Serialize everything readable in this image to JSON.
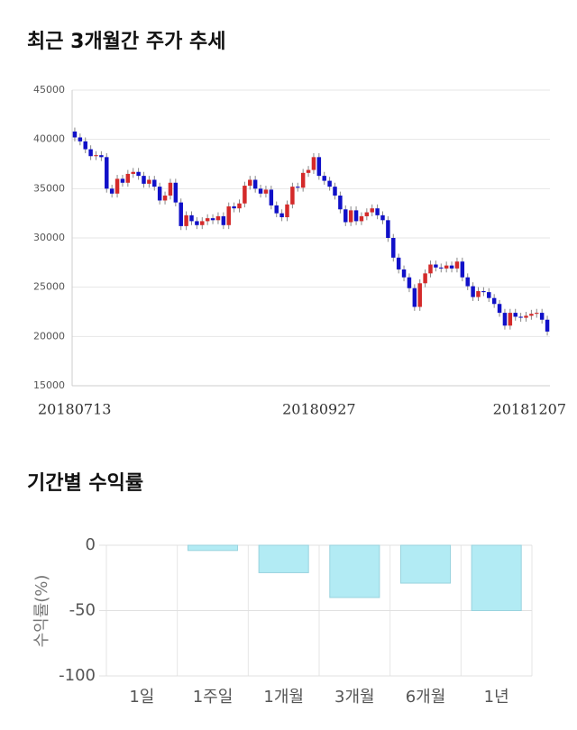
{
  "chart_data": [
    {
      "type": "candlestick",
      "title": "최근 3개월간 주가 추세",
      "categories": [
        "20180713",
        null,
        null,
        null,
        null,
        null,
        null,
        null,
        null,
        null,
        null,
        null,
        null,
        null,
        null,
        null,
        null,
        null,
        null,
        null,
        null,
        null,
        null,
        null,
        null,
        null,
        null,
        null,
        null,
        null,
        null,
        null,
        null,
        null,
        null,
        null,
        null,
        null,
        null,
        null,
        null,
        null,
        null,
        null,
        null,
        null,
        "20180927",
        null,
        null,
        null,
        null,
        null,
        null,
        null,
        null,
        null,
        null,
        null,
        null,
        null,
        null,
        null,
        null,
        null,
        null,
        null,
        null,
        null,
        null,
        null,
        null,
        null,
        null,
        null,
        null,
        null,
        null,
        null,
        null,
        null,
        null,
        null,
        null,
        null,
        null,
        null,
        null,
        null,
        "20181207",
        null
      ],
      "open": [
        40800,
        40200,
        39800,
        39000,
        38300,
        38400,
        38200,
        35000,
        34500,
        36000,
        35600,
        36500,
        36700,
        36300,
        35500,
        35900,
        35200,
        33800,
        34300,
        35600,
        33600,
        31200,
        32300,
        31700,
        31300,
        31700,
        32000,
        31800,
        32200,
        31300,
        33200,
        33000,
        33500,
        35300,
        35900,
        35000,
        34500,
        34900,
        33300,
        32500,
        32100,
        33400,
        35200,
        35100,
        36600,
        36900,
        38200,
        36300,
        35800,
        35200,
        34300,
        32900,
        31600,
        32800,
        31700,
        32200,
        32600,
        33000,
        32300,
        31800,
        30000,
        28000,
        26800,
        26000,
        24900,
        23000,
        25400,
        26400,
        27300,
        27000,
        26900,
        27200,
        26900,
        27600,
        26000,
        25100,
        24000,
        24600,
        24500,
        23900,
        23300,
        22400,
        21100,
        22400,
        22000,
        21900,
        22100,
        22300,
        22400,
        21700
      ],
      "high": [
        41200,
        40600,
        40200,
        39400,
        38800,
        38800,
        38600,
        35400,
        36400,
        36400,
        36900,
        37100,
        37100,
        36700,
        36300,
        36300,
        35600,
        34700,
        36000,
        36000,
        34000,
        32700,
        32700,
        32100,
        32100,
        32400,
        32400,
        32600,
        32600,
        33600,
        33600,
        33900,
        35700,
        36300,
        36300,
        35400,
        35300,
        35300,
        33700,
        32900,
        33800,
        35600,
        35600,
        37000,
        37300,
        38600,
        38600,
        36700,
        36200,
        35600,
        34700,
        33300,
        33200,
        33200,
        32600,
        33000,
        33400,
        33400,
        32700,
        32200,
        30400,
        28400,
        27200,
        26400,
        25300,
        25800,
        26800,
        27700,
        27700,
        27400,
        27600,
        27600,
        28000,
        28000,
        26400,
        25500,
        25000,
        25000,
        24900,
        24300,
        23700,
        22800,
        22800,
        22800,
        22400,
        22500,
        22700,
        22800,
        22800,
        22100
      ],
      "low": [
        39800,
        39400,
        38600,
        37900,
        37900,
        37800,
        34600,
        34100,
        34100,
        35200,
        35200,
        36100,
        35900,
        35100,
        35100,
        34800,
        33400,
        33400,
        33900,
        33200,
        30800,
        30800,
        31300,
        30900,
        30900,
        31300,
        31400,
        31400,
        30900,
        30900,
        32600,
        32600,
        33100,
        34900,
        34600,
        34100,
        34100,
        32900,
        32100,
        31700,
        31700,
        33000,
        34700,
        34700,
        36200,
        36500,
        35900,
        35400,
        34800,
        33900,
        32500,
        31200,
        31200,
        31300,
        31300,
        31800,
        32200,
        31900,
        31400,
        29600,
        27600,
        26400,
        25600,
        24500,
        22600,
        22600,
        25000,
        26000,
        26600,
        26500,
        26500,
        26500,
        26500,
        25600,
        24700,
        23600,
        23600,
        24100,
        23500,
        22900,
        22000,
        20700,
        20700,
        21600,
        21500,
        21500,
        21700,
        21900,
        21300,
        20100
      ],
      "close": [
        40200,
        39800,
        39000,
        38300,
        38400,
        38200,
        35000,
        34500,
        36000,
        35600,
        36500,
        36700,
        36300,
        35500,
        35900,
        35200,
        33800,
        34300,
        35600,
        33600,
        31200,
        32300,
        31700,
        31300,
        31700,
        32000,
        31800,
        32200,
        31300,
        33200,
        33000,
        33500,
        35300,
        35900,
        35000,
        34500,
        34900,
        33300,
        32500,
        32100,
        33400,
        35200,
        35100,
        36600,
        36900,
        38200,
        36300,
        35800,
        35200,
        34300,
        32900,
        31600,
        32800,
        31700,
        32200,
        32600,
        33000,
        32300,
        31800,
        30000,
        28000,
        26800,
        26000,
        24900,
        23000,
        25400,
        26400,
        27300,
        27000,
        26900,
        27200,
        26900,
        27600,
        26000,
        25100,
        24000,
        24600,
        24500,
        23900,
        23300,
        22400,
        21100,
        22400,
        22000,
        21900,
        22100,
        22300,
        22400,
        21700,
        20500
      ],
      "up_color": "#d42a2a",
      "down_color": "#1010c8",
      "ylim": [
        15000,
        45000
      ],
      "yticks": [
        15000,
        20000,
        25000,
        30000,
        35000,
        40000,
        45000
      ],
      "grid": true
    },
    {
      "type": "bar",
      "title": "기간별 수익률",
      "y_label": "수익률(%)",
      "categories": [
        "1일",
        "1주일",
        "1개월",
        "3개월",
        "6개월",
        "1년"
      ],
      "values": [
        0,
        -4,
        -21,
        -40,
        -29,
        -50
      ],
      "color": "#b2ebf4",
      "ylim": [
        -100,
        0
      ],
      "yticks": [
        0,
        -50,
        -100
      ],
      "grid": true
    }
  ]
}
